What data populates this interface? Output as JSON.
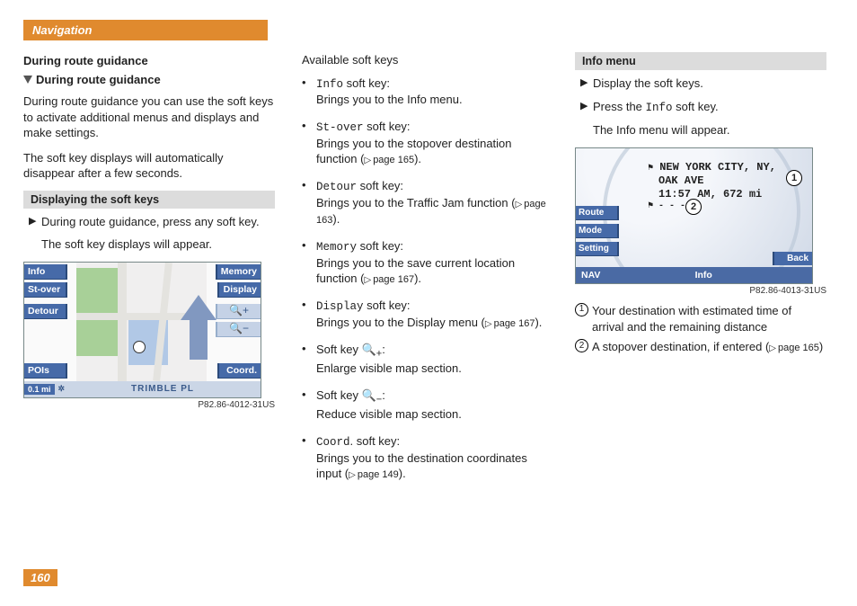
{
  "page": {
    "nav_tab": "Navigation",
    "page_number": "160"
  },
  "col1": {
    "title_bar": "During route guidance",
    "subheading": "During route guidance",
    "p1": "During route guidance you can use the soft keys to activate additional menus and displays and make settings.",
    "p2": "The soft key displays will automatically disappear after a few seconds.",
    "box1_title": "Displaying the soft keys",
    "step1": "During route guidance, press any soft key.",
    "step1_result": "The soft key displays will appear.",
    "ref": "P82.86-4012-31US",
    "sk": {
      "info": "Info",
      "stover": "St-over",
      "detour": "Detour",
      "pois": "POIs",
      "memory": "Memory",
      "display": "Display",
      "coord": "Coord."
    },
    "bottombar": {
      "scale": "0.1 mi",
      "road": "TRIMBLE PL"
    }
  },
  "col2": {
    "heading": "Available soft keys",
    "items": [
      {
        "key": "Info",
        "label": " soft key:",
        "desc": "Brings you to the Info menu."
      },
      {
        "key": "St-over",
        "label": " soft key:",
        "desc": "Brings you to the stopover destination function (",
        "page": "page 165",
        "tail": ")."
      },
      {
        "key": "Detour",
        "label": " soft key:",
        "desc": "Brings you to the Traffic Jam function (",
        "page": "page 163",
        "tail": ")."
      },
      {
        "key": "Memory",
        "label": " soft key:",
        "desc": "Brings you to the save current location function (",
        "page": "page 167",
        "tail": ")."
      },
      {
        "key": "Display",
        "label": " soft key:",
        "desc": "Brings you to the Display menu (",
        "page": "page 167",
        "tail": ")."
      },
      {
        "zoom": "in",
        "label": "Soft key ",
        "desc": "Enlarge visible map section."
      },
      {
        "zoom": "out",
        "label": "Soft key ",
        "desc": "Reduce visible map section."
      },
      {
        "key": "Coord",
        "label": ". soft key:",
        "desc": "Brings you to the destination coordinates input (",
        "page": "page 149",
        "tail": ")."
      }
    ]
  },
  "col3": {
    "box_title": "Info menu",
    "step1": "Display the soft keys.",
    "step2a": "Press the ",
    "step2key": "Info",
    "step2b": " soft key.",
    "result": "The Info menu will appear.",
    "ref": "P82.86-4013-31US",
    "dest": {
      "line1": "NEW  YORK  CITY,  NY,",
      "line2": "OAK  AVE",
      "line3": "11:57  AM,  672  mi"
    },
    "sk": {
      "route": "Route",
      "mode": "Mode",
      "setting": "Setting",
      "back": "Back"
    },
    "bar": {
      "nav": "NAV",
      "info": "Info"
    },
    "legend1": "Your destination with estimated time of arrival and the remaining distance",
    "legend2a": "A stopover destination, if entered (",
    "legend2page": "page 165",
    "legend2b": ")"
  }
}
